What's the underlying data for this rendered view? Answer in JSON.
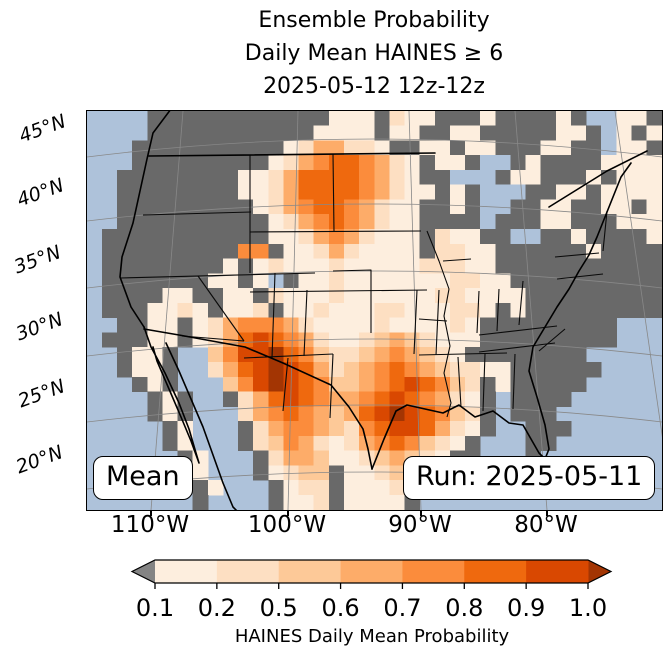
{
  "title": {
    "line1": "Ensemble Probability",
    "line2": "Daily Mean HAINES ≥ 6",
    "line3": "2025-05-12 12z-12z"
  },
  "map": {
    "stat_label": "Mean",
    "run_label": "Run: 2025-05-11",
    "lat_labels": [
      "45°N",
      "40°N",
      "35°N",
      "30°N",
      "25°N",
      "20°N"
    ],
    "lon_labels": [
      "110°W",
      "100°W",
      "90°W",
      "80°W"
    ],
    "colors": {
      "ocean": "#aec2da",
      "land_gray": "#696969",
      "coast_border": "#000000",
      "graticule": "#888888"
    },
    "grid": {
      "cols": 38,
      "rows": 27,
      "legend": "dot=water, x=gray land (below 0.1), L=lake, 1-8=increasing HAINES probability bins",
      "cells": [
        "....xxxxxxxxxxxx111x211xxx1xxxx1x.L11x",
        "....xxxxxxxxxxx1111x11xx11xxxxx11xL1x1",
        "...xxxxxxxxxx1244221xx11x11xxx11xxL11x",
        "...xxxxxxxxx1245665421x11xLLx1xxxx1111",
        "..xxxxxxxx112466665421xxLLLx11xxx1x111",
        "..xxxxxxxx1124666654211x1xLLLxx11x1111",
        "..xxxxxxxxx12456654211xx1xLLxx11xx11x1",
        "..xxxxxxxxxx1245654211xxxxLxxx11xxx111",
        ".xxxxxxxxxxx1124542111x211xxLLxx1xxxx1",
        ".xxxxxxxxx55x112421111x2211xxxxxx1xxxx",
        ".xxxxxxxx1x1211121111122211xxxxxxxxxxx",
        ".xxxxxxx11x1Lx11211111112211xxxxxxxxxx",
        ".xxxx11xx11x21112111111221111xxxxxxxxx",
        ".xxx1121x112x11211122111221x1xxxxxxxxx",
        "..xx11x1245554211112111121xxxxxxxxx...",
        ".xxx11x1246765421123432111xxxxxxxxx...",
        "..x11x..35778653223454321xxxxxxxx.....",
        "..x11x..24678764234565432211xxxxxx....",
        "...x1x...35787653345676532x1xxxxx.....",
        "....x1x..x2467654456765421x.xxxx......",
        "....x1x...2456543467876532x.xxx.......",
        ".....x1...x245543256776421x..xxx......",
        ".....x1...x23542124565321x...xx.......",
        "......x1...x244311234321xx...x........",
        "......x1...x1233x112321x..............",
        ".......x1...x122x11121x......x........",
        ".......x....x112x1111x................"
      ]
    },
    "palette": {
      "1": "#fdeede",
      "2": "#fddfc2",
      "3": "#fdc998",
      "4": "#fdac69",
      "5": "#fb8c3c",
      "6": "#ef690e",
      "7": "#d94801",
      "8": "#a33503",
      "x": "#696969",
      "o": "#808080",
      "L": "#aec2da"
    }
  },
  "colorbar": {
    "tick_labels": [
      "0.1",
      "0.2",
      "0.5",
      "0.6",
      "0.7",
      "0.8",
      "0.9",
      "1.0"
    ],
    "segment_colors": [
      "#fdeede",
      "#fddfc2",
      "#fdc998",
      "#fdac69",
      "#fb8c3c",
      "#ef690e",
      "#d94801"
    ],
    "under_color": "#848484",
    "over_color": "#a33503",
    "caption": "HAINES Daily Mean Probability"
  }
}
